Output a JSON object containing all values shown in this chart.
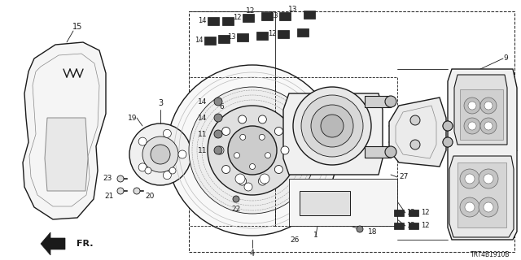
{
  "doc_number": "TRT4B1910B",
  "bg_color": "#ffffff",
  "line_color": "#1a1a1a",
  "fig_width": 6.4,
  "fig_height": 3.2,
  "dpi": 100
}
